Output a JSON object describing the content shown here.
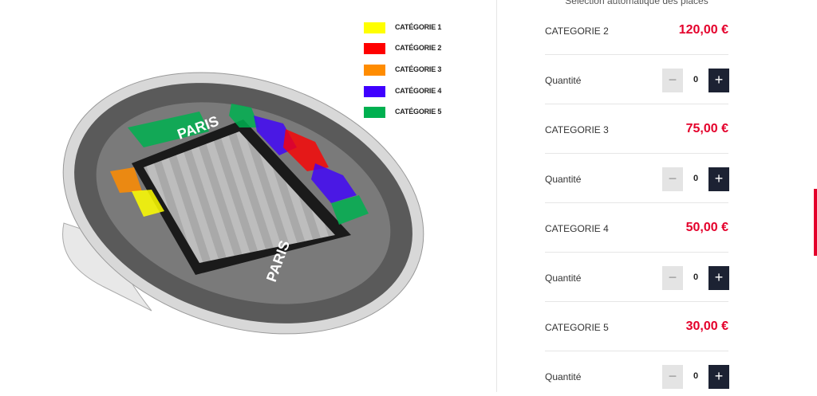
{
  "header": {
    "subtitle": "Sélection automatique des places"
  },
  "legend": [
    {
      "label": "CATÉGORIE 1",
      "color": "#ffff00"
    },
    {
      "label": "CATÉGORIE 2",
      "color": "#ff0000"
    },
    {
      "label": "CATÉGORIE 3",
      "color": "#ff8c00"
    },
    {
      "label": "CATÉGORIE 4",
      "color": "#3f00ff"
    },
    {
      "label": "CATÉGORIE 5",
      "color": "#00b050"
    }
  ],
  "tickets": [
    {
      "category": "CATEGORIE 2",
      "price": "120,00 €",
      "quantity_label": "Quantité",
      "quantity": 0
    },
    {
      "category": "CATEGORIE 3",
      "price": "75,00 €",
      "quantity_label": "Quantité",
      "quantity": 0
    },
    {
      "category": "CATEGORIE 4",
      "price": "50,00 €",
      "quantity_label": "Quantité",
      "quantity": 0
    },
    {
      "category": "CATEGORIE 5",
      "price": "30,00 €",
      "quantity_label": "Quantité",
      "quantity": 0
    }
  ]
}
